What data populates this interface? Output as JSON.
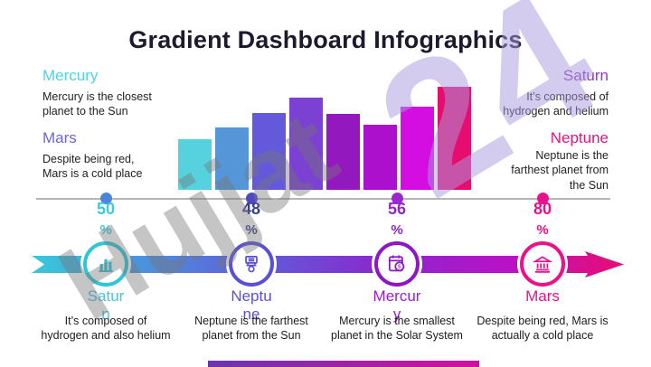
{
  "title": "Gradient Dashboard Infographics",
  "colors": {
    "title": "#1c1b2e",
    "body_text": "#222222",
    "baseline": "#b5b5b5",
    "watermark_gray": "#777777",
    "watermark_lavender": "#a89ae0",
    "footer_bar_left": "#6A35B0",
    "footer_bar_right": "#D110A0"
  },
  "watermark": {
    "brand": "Hujjat",
    "number": "24"
  },
  "corner_notes": [
    {
      "id": "mercury",
      "heading": "Mercury",
      "heading_color": "#4FD5E1",
      "body": "Mercury is the closest\nplanet to the Sun"
    },
    {
      "id": "mars",
      "heading": "Mars",
      "heading_color": "#6B66D4",
      "body": "Despite being red,\nMars is a cold place"
    },
    {
      "id": "saturn",
      "heading": "Saturn",
      "heading_color": "#9333C9",
      "body": "It’s composed of\nhydrogen and helium"
    },
    {
      "id": "neptune",
      "heading": "Neptune",
      "heading_color": "#E31580",
      "body": "Neptune is the\nfarthest planet from\nthe Sun"
    }
  ],
  "chart_data": {
    "type": "bar",
    "title": "Gradient Dashboard Infographics",
    "values": [
      56,
      69,
      85,
      102,
      84,
      72,
      92,
      114
    ],
    "value_scale": "relative bar heights in px (chart has no labeled axes)",
    "bar_colors": [
      "#55D2DE",
      "#5596D8",
      "#6459DB",
      "#7A41D2",
      "#9318BE",
      "#AC10CC",
      "#D40EE0",
      "#E60D6E"
    ],
    "xlabel": "",
    "ylabel": "",
    "grid": false,
    "legend": false
  },
  "percent_markers": [
    {
      "value": "50",
      "symbol": "%",
      "text_color": "#3EC9DC",
      "dot_color": "#4A86D8"
    },
    {
      "value": "48",
      "symbol": "%",
      "text_color": "#3A3E92",
      "dot_color": "#5049C2"
    },
    {
      "value": "56",
      "symbol": "%",
      "text_color": "#9127C8",
      "dot_color": "#9C27D0"
    },
    {
      "value": "80",
      "symbol": "%",
      "text_color": "#E8128C",
      "dot_color": "#E8128C"
    }
  ],
  "timeline": {
    "gradient": [
      "#38C9DC",
      "#4D8EDD",
      "#6358D8",
      "#8C26CC",
      "#B712C6",
      "#E80D72"
    ],
    "items": [
      {
        "heading": "Satur\nn",
        "heading_color": "#3FC8DC",
        "ring_color": "#2EC6D8",
        "icon": "bar-chart-icon",
        "body": "It’s composed of\nhydrogen and also helium"
      },
      {
        "heading": "Neptu\nne",
        "heading_color": "#5A50D8",
        "ring_color": "#5A50D8",
        "icon": "cash-register-icon",
        "body": "Neptune is the farthest\nplanet from the Sun"
      },
      {
        "heading": "Mercur\ny",
        "heading_color": "#9A1FC8",
        "ring_color": "#8E16C4",
        "icon": "calculator-icon",
        "body": "Mercury is the smallest\nplanet in the Solar System"
      },
      {
        "heading": "Mars",
        "heading_color": "#E8128C",
        "ring_color": "#E8128C",
        "icon": "bank-icon",
        "body": "Despite being red, Mars is\nactually a cold place"
      }
    ]
  }
}
